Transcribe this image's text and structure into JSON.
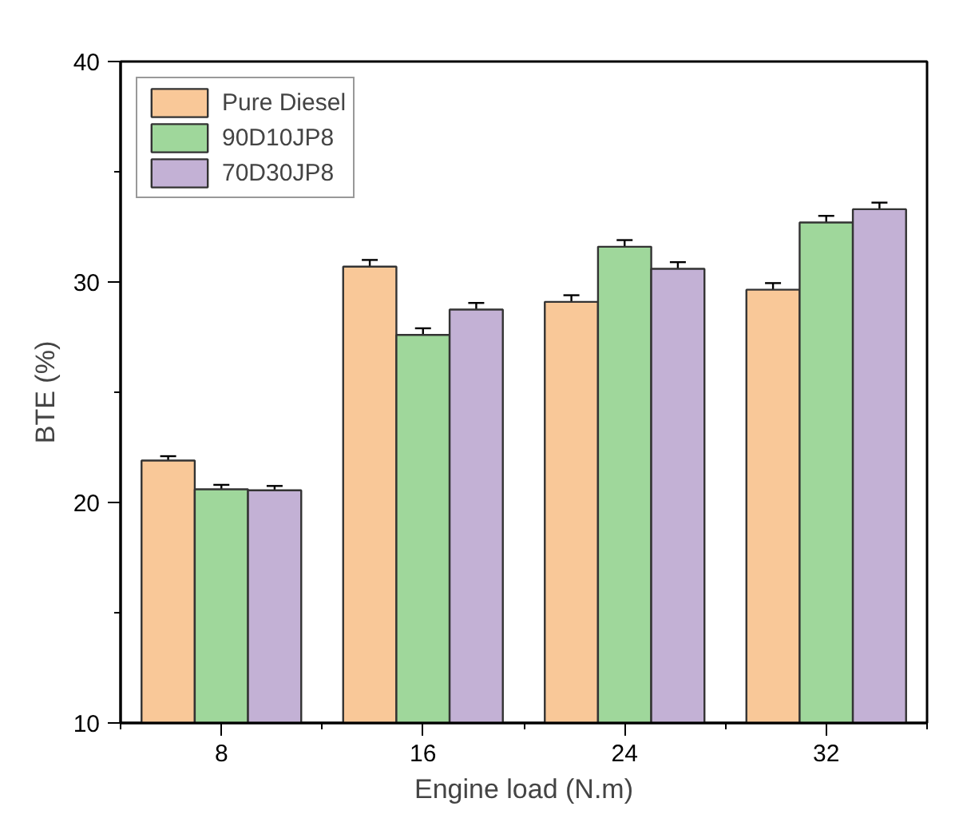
{
  "chart_data": {
    "type": "bar",
    "xlabel": "Engine load (N.m)",
    "ylabel": "BTE (%)",
    "categories": [
      "8",
      "16",
      "24",
      "32"
    ],
    "series": [
      {
        "name": "Pure Diesel",
        "color": "#f9c898",
        "values": [
          21.9,
          30.7,
          29.1,
          29.65
        ],
        "errors": [
          0.2,
          0.3,
          0.3,
          0.3
        ]
      },
      {
        "name": "90D10JP8",
        "color": "#9fd79b",
        "values": [
          20.6,
          27.6,
          31.6,
          32.7
        ],
        "errors": [
          0.2,
          0.3,
          0.3,
          0.3
        ]
      },
      {
        "name": "70D30JP8",
        "color": "#c3b1d5",
        "values": [
          20.55,
          28.75,
          30.6,
          33.3
        ],
        "errors": [
          0.2,
          0.3,
          0.3,
          0.3
        ]
      }
    ],
    "ylim": [
      10,
      40
    ],
    "yticks": [
      10,
      20,
      30,
      40
    ],
    "grid": false,
    "legend": "top left"
  }
}
